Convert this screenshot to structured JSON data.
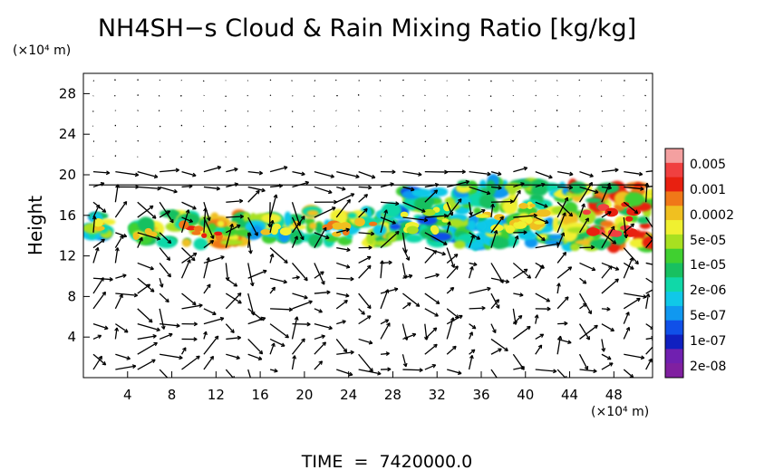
{
  "chart_data": {
    "type": "heatmap",
    "title": "NH4SH−s Cloud & Rain Mixing Ratio [kg/kg]",
    "ylabel": "Height",
    "y_unit": "(×10⁴ m)",
    "x_unit": "(×10⁴ m)",
    "footer": "TIME  =  7420000.0",
    "xlim": [
      0,
      51.5
    ],
    "ylim": [
      0,
      30
    ],
    "xticks": [
      "4",
      "8",
      "12",
      "16",
      "20",
      "24",
      "28",
      "32",
      "36",
      "40",
      "44",
      "48"
    ],
    "yticks": [
      "4",
      "8",
      "12",
      "16",
      "20",
      "24",
      "28"
    ],
    "xtick_values": [
      4,
      8,
      12,
      16,
      20,
      24,
      28,
      32,
      36,
      40,
      44,
      48
    ],
    "ytick_values": [
      4,
      8,
      12,
      16,
      20,
      24,
      28
    ],
    "colorbar": {
      "labels": [
        "0.005",
        "0.001",
        "0.0002",
        "5e-05",
        "1e-05",
        "2e-06",
        "5e-07",
        "1e-07",
        "2e-08"
      ],
      "colors": [
        "#f4a0a0",
        "#f04040",
        "#e82010",
        "#f07818",
        "#f0c020",
        "#f0f030",
        "#a8e020",
        "#40d030",
        "#18c060",
        "#10d8a8",
        "#10c8e8",
        "#1098f0",
        "#1050e8",
        "#1020c0",
        "#7020b0",
        "#8020a0"
      ]
    },
    "cloud_regions": [
      {
        "x": [
          0.2,
          2.5
        ],
        "y": [
          13.8,
          16.0
        ],
        "level": 6
      },
      {
        "x": [
          4.0,
          7.0
        ],
        "y": [
          13.5,
          15.2
        ],
        "level": 5
      },
      {
        "x": [
          7.5,
          14.5
        ],
        "y": [
          13.0,
          16.2
        ],
        "level": 4
      },
      {
        "x": [
          14.5,
          20.5
        ],
        "y": [
          13.5,
          16.0
        ],
        "level": 6
      },
      {
        "x": [
          20.5,
          28.0
        ],
        "y": [
          13.2,
          16.5
        ],
        "level": 5
      },
      {
        "x": [
          27.5,
          35.0
        ],
        "y": [
          13.5,
          18.5
        ],
        "level": 7
      },
      {
        "x": [
          34.0,
          44.0
        ],
        "y": [
          13.0,
          19.5
        ],
        "level": 6
      },
      {
        "x": [
          44.0,
          51.5
        ],
        "y": [
          12.8,
          19.0
        ],
        "level": 3
      }
    ]
  }
}
